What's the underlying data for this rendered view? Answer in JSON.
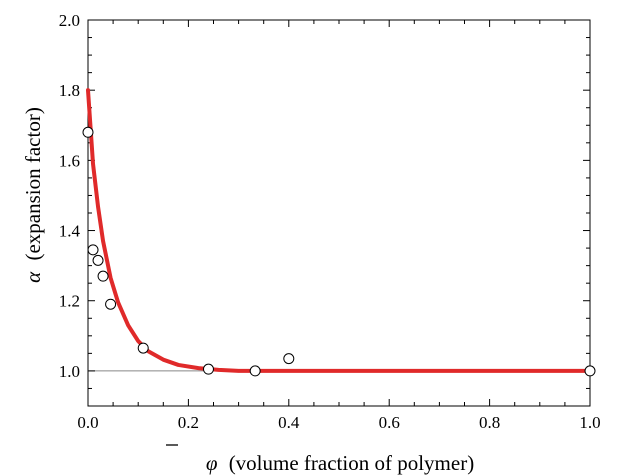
{
  "chart_data": {
    "type": "scatter",
    "title": "",
    "xlabel_symbol": "φ",
    "xlabel": "(volume fraction of polymer)",
    "ylabel_symbol": "α",
    "ylabel": "(expansion factor)",
    "xlim": [
      0,
      1.0
    ],
    "ylim": [
      0.9,
      2.0
    ],
    "x_ticks": [
      "0.0",
      "0.2",
      "0.4",
      "0.6",
      "0.8",
      "1.0"
    ],
    "y_ticks": [
      "1.0",
      "1.2",
      "1.4",
      "1.6",
      "1.8",
      "2.0"
    ],
    "grid": false,
    "reference_line_y": 1.0,
    "series": [
      {
        "kind": "points",
        "x": [
          0.0,
          0.01,
          0.02,
          0.03,
          0.045,
          0.11,
          0.24,
          0.333,
          0.4,
          1.0
        ],
        "y": [
          1.68,
          1.345,
          1.315,
          1.27,
          1.19,
          1.065,
          1.005,
          1.0,
          1.035,
          1.0
        ]
      },
      {
        "kind": "curve",
        "x": [
          0.0,
          0.01,
          0.02,
          0.03,
          0.045,
          0.06,
          0.08,
          0.1,
          0.12,
          0.15,
          0.18,
          0.22,
          0.26,
          0.3,
          0.4,
          0.5,
          0.7,
          1.0
        ],
        "y": [
          1.8,
          1.59,
          1.468,
          1.37,
          1.265,
          1.195,
          1.13,
          1.085,
          1.056,
          1.032,
          1.017,
          1.008,
          1.003,
          1.0,
          1.0,
          1.0,
          1.0,
          1.0
        ]
      }
    ],
    "colors": {
      "curve": "#e02a2a",
      "points_fill": "#ffffff",
      "points_stroke": "#000000",
      "axis": "#000000",
      "reference_line": "#888888"
    }
  }
}
